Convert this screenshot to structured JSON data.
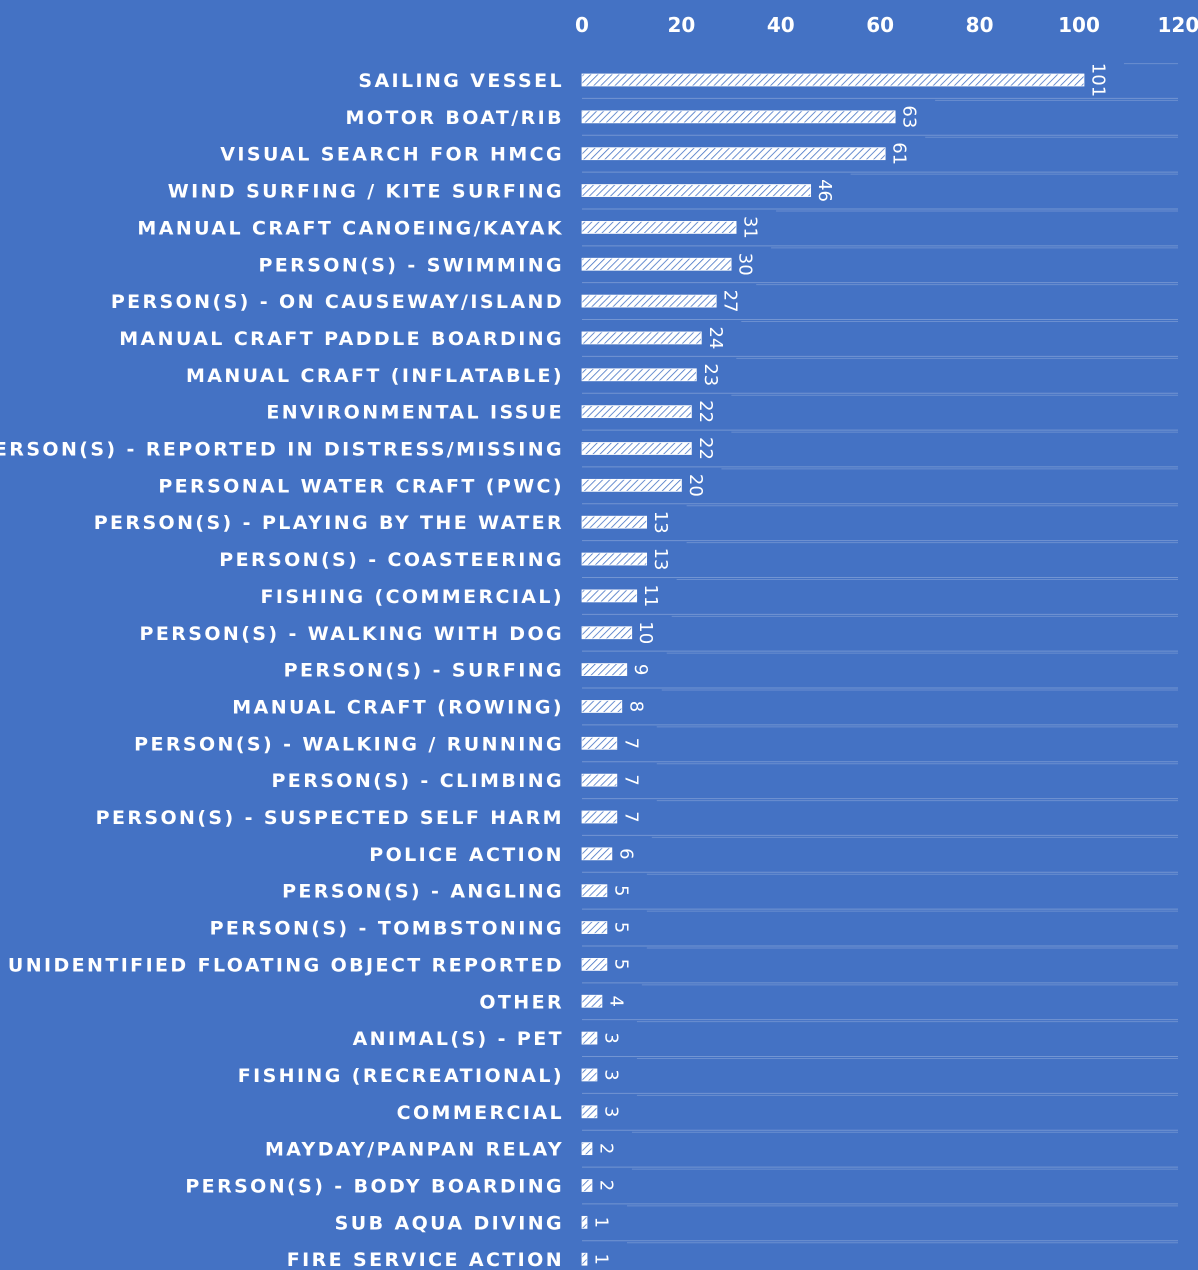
{
  "chart_data": {
    "type": "bar",
    "orientation": "horizontal",
    "title": "",
    "xlabel": "",
    "ylabel": "",
    "xlim": [
      0,
      120
    ],
    "ticks": [
      "0",
      "20",
      "40",
      "60",
      "80",
      "100",
      "120"
    ],
    "tick_values": [
      0,
      20,
      40,
      60,
      80,
      100,
      120
    ],
    "grid": true,
    "legend": "none",
    "bar_fill": "white hatched",
    "colors": {
      "background": "#4472c4",
      "text": "#ffffff",
      "bar": "#ffffff",
      "gridline": "#9bb3df"
    },
    "categories": [
      "SAILING VESSEL",
      "MOTOR BOAT/RIB",
      "VISUAL SEARCH FOR HMCG",
      "WIND SURFING / KITE SURFING",
      "MANUAL CRAFT CANOEING/KAYAK",
      "PERSON(S) - SWIMMING",
      "PERSON(S) - ON CAUSEWAY/ISLAND",
      "MANUAL CRAFT PADDLE BOARDING",
      "MANUAL CRAFT (INFLATABLE)",
      "ENVIRONMENTAL ISSUE",
      "PERSON(S) - REPORTED IN DISTRESS/MISSING",
      "PERSONAL WATER CRAFT (PWC)",
      "PERSON(S) - PLAYING BY THE WATER",
      "PERSON(S) - COASTEERING",
      "FISHING (COMMERCIAL)",
      "PERSON(S) - WALKING WITH DOG",
      "PERSON(S) - SURFING",
      "MANUAL CRAFT (ROWING)",
      "PERSON(S) - WALKING / RUNNING",
      "PERSON(S) - CLIMBING",
      "PERSON(S) - SUSPECTED SELF HARM",
      "POLICE ACTION",
      "PERSON(S) - ANGLING",
      "PERSON(S) - TOMBSTONING",
      "UNIDENTIFIED FLOATING OBJECT REPORTED",
      "OTHER",
      "ANIMAL(S) - PET",
      "FISHING (RECREATIONAL)",
      "COMMERCIAL",
      "MAYDAY/PANPAN RELAY",
      "PERSON(S) - BODY BOARDING",
      "SUB AQUA DIVING",
      "FIRE SERVICE ACTION"
    ],
    "values": [
      101,
      63,
      61,
      46,
      31,
      30,
      27,
      24,
      23,
      22,
      22,
      20,
      13,
      13,
      11,
      10,
      9,
      8,
      7,
      7,
      7,
      6,
      5,
      5,
      5,
      4,
      3,
      3,
      3,
      2,
      2,
      1,
      1
    ],
    "value_labels": [
      "101",
      "63",
      "61",
      "46",
      "31",
      "30",
      "27",
      "24",
      "23",
      "22",
      "22",
      "20",
      "13",
      "13",
      "11",
      "10",
      "9",
      "8",
      "7",
      "7",
      "7",
      "6",
      "5",
      "5",
      "5",
      "4",
      "3",
      "3",
      "3",
      "2",
      "2",
      "1",
      "1"
    ]
  }
}
